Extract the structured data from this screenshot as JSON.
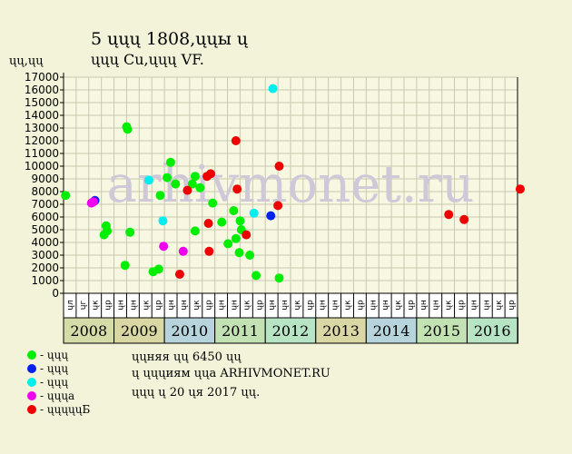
{
  "header": {
    "title": "5 ųųų 1808,ųųы ų",
    "subtitle": "ųųų Cu,ųųų VF.",
    "y_unit": "ųų,ųų"
  },
  "watermark": "arhivmonet.ru",
  "colors": {
    "background": "#f3f3d9",
    "plot_background": "#f8f8e2",
    "grid": "#c9c9b0",
    "watermark": "#cfc8d8"
  },
  "chart_data": {
    "type": "scatter",
    "x_axis": "date",
    "x_range": [
      "2008-04",
      "2017-04"
    ],
    "ylim": [
      0,
      17000
    ],
    "yticks": [
      0,
      1000,
      2000,
      3000,
      4000,
      5000,
      6000,
      7000,
      8000,
      9000,
      10000,
      11000,
      12000,
      13000,
      14000,
      15000,
      16000,
      17000
    ],
    "grid": true,
    "month_tick_labels": [
      "ųл",
      "ųг",
      "ųк",
      "ųр",
      "ųн",
      "ųн",
      "ųк",
      "ųр",
      "ųн",
      "ųн",
      "ųк",
      "ųр",
      "ųн",
      "ųн",
      "ųк",
      "ųр",
      "ųн",
      "ųн",
      "ųк",
      "ųр",
      "ųн",
      "ųн",
      "ųк",
      "ųр",
      "ųн",
      "ųн",
      "ųк",
      "ųр",
      "ųн",
      "ųн",
      "ųк",
      "ųр",
      "ųн",
      "ųн",
      "ųк",
      "ųр"
    ],
    "years": [
      {
        "label": "2008",
        "color": "#d6dca8"
      },
      {
        "label": "2009",
        "color": "#d9d7a4"
      },
      {
        "label": "2010",
        "color": "#b7d4dc"
      },
      {
        "label": "2011",
        "color": "#c3e2b4"
      },
      {
        "label": "2012",
        "color": "#b6e4c4"
      },
      {
        "label": "2013",
        "color": "#d9d7a4"
      },
      {
        "label": "2014",
        "color": "#b7d4dc"
      },
      {
        "label": "2015",
        "color": "#c3e2b4"
      },
      {
        "label": "2016",
        "color": "#b6e4c4"
      },
      {
        "label": "",
        "color": "#7fb39c"
      }
    ],
    "series": [
      {
        "name": "- ųųų",
        "color": "#00ee00",
        "points": [
          {
            "x": "2008-04-15",
            "y": 7700
          },
          {
            "x": "2009-01-20",
            "y": 4600
          },
          {
            "x": "2009-02-05",
            "y": 5300
          },
          {
            "x": "2009-02-12",
            "y": 4900
          },
          {
            "x": "2009-06-20",
            "y": 2200
          },
          {
            "x": "2009-07-01",
            "y": 13100
          },
          {
            "x": "2009-07-08",
            "y": 12900
          },
          {
            "x": "2009-07-25",
            "y": 4800
          },
          {
            "x": "2010-01-10",
            "y": 1700
          },
          {
            "x": "2010-02-20",
            "y": 1900
          },
          {
            "x": "2010-03-01",
            "y": 7700
          },
          {
            "x": "2010-04-20",
            "y": 9100
          },
          {
            "x": "2010-05-15",
            "y": 10300
          },
          {
            "x": "2010-06-20",
            "y": 8600
          },
          {
            "x": "2010-10-20",
            "y": 8600
          },
          {
            "x": "2010-11-10",
            "y": 9200
          },
          {
            "x": "2010-11-10",
            "y": 4900
          },
          {
            "x": "2010-12-15",
            "y": 8300
          },
          {
            "x": "2011-03-15",
            "y": 7100
          },
          {
            "x": "2011-05-20",
            "y": 5600
          },
          {
            "x": "2011-07-05",
            "y": 3900
          },
          {
            "x": "2011-08-15",
            "y": 6500
          },
          {
            "x": "2011-09-01",
            "y": 4300
          },
          {
            "x": "2011-09-25",
            "y": 3200
          },
          {
            "x": "2011-10-01",
            "y": 5700
          },
          {
            "x": "2011-10-10",
            "y": 5000
          },
          {
            "x": "2011-12-10",
            "y": 3000
          },
          {
            "x": "2012-01-25",
            "y": 1400
          },
          {
            "x": "2012-07-10",
            "y": 1200
          }
        ]
      },
      {
        "name": "- ųųų",
        "color": "#0022ee",
        "points": [
          {
            "x": "2008-11-15",
            "y": 7300
          },
          {
            "x": "2012-05-10",
            "y": 6100
          }
        ]
      },
      {
        "name": "- ųųų",
        "color": "#00eeee",
        "points": [
          {
            "x": "2009-12-10",
            "y": 8900
          },
          {
            "x": "2010-03-20",
            "y": 5700
          },
          {
            "x": "2012-01-10",
            "y": 6300
          },
          {
            "x": "2012-05-25",
            "y": 16100
          }
        ]
      },
      {
        "name": "- ųųųа",
        "color": "#ee00ee",
        "points": [
          {
            "x": "2008-10-20",
            "y": 7100
          },
          {
            "x": "2008-11-05",
            "y": 7200
          },
          {
            "x": "2010-03-25",
            "y": 3700
          },
          {
            "x": "2010-08-15",
            "y": 3300
          }
        ]
      },
      {
        "name": "- ųųųųųБ",
        "color": "#ee0000",
        "points": [
          {
            "x": "2010-07-20",
            "y": 1500
          },
          {
            "x": "2010-09-15",
            "y": 8100
          },
          {
            "x": "2011-02-05",
            "y": 9200
          },
          {
            "x": "2011-03-01",
            "y": 9400
          },
          {
            "x": "2011-02-15",
            "y": 5500
          },
          {
            "x": "2011-02-20",
            "y": 3300
          },
          {
            "x": "2011-09-01",
            "y": 12000
          },
          {
            "x": "2011-09-10",
            "y": 8200
          },
          {
            "x": "2011-11-15",
            "y": 4600
          },
          {
            "x": "2012-07-01",
            "y": 6900
          },
          {
            "x": "2012-07-10",
            "y": 10000
          },
          {
            "x": "2015-11-20",
            "y": 6200
          },
          {
            "x": "2016-03-10",
            "y": 5800
          },
          {
            "x": "2017-04-20",
            "y": 8200
          }
        ]
      }
    ]
  },
  "info": {
    "line1": "ųųняя ųų 6450 ųų",
    "line2": "ų ųųųиям ųųа ARHIVMONET.RU",
    "line3": "ųųų ų 20 ųя 2017 ųų."
  }
}
